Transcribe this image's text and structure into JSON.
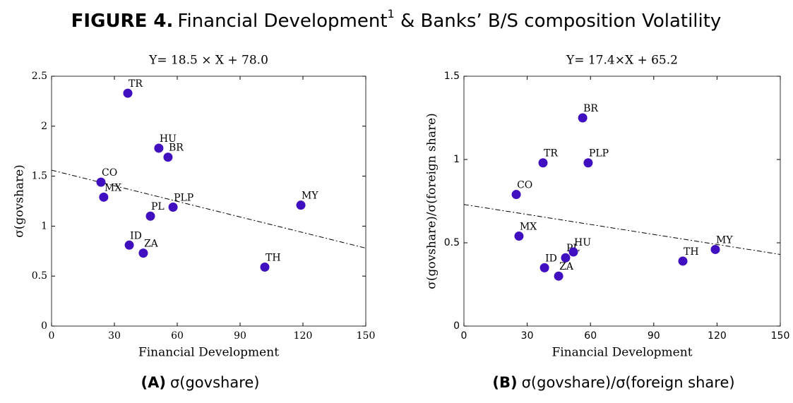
{
  "figure": {
    "label": "FIGURE 4.",
    "title_a": "Financial Development",
    "footnote": "1",
    "title_b": " & Banks’ B/S composition Volatility"
  },
  "chart_data": [
    {
      "type": "scatter",
      "title": "Y= 18.5 × X + 78.0",
      "xlabel": "Financial Development",
      "ylabel": "σ(govshare)",
      "caption_label": "(A)",
      "caption": "σ(govshare)",
      "color": "#4010c0",
      "labels": [
        "TR",
        "HU",
        "BR",
        "CO",
        "MX",
        "PLP",
        "PL",
        "MY",
        "ID",
        "ZA",
        "TH"
      ],
      "x": [
        36.4,
        51.2,
        55.6,
        23.6,
        24.9,
        58,
        47.2,
        119,
        37.1,
        43.8,
        101.8
      ],
      "values": [
        2.33,
        1.78,
        1.69,
        1.44,
        1.29,
        1.19,
        1.1,
        1.21,
        0.81,
        0.73,
        0.59
      ],
      "fit_line": {
        "x": [
          0,
          150
        ],
        "y": [
          1.56,
          0.78
        ]
      },
      "xlim": [
        0,
        150
      ],
      "xticks": [
        0,
        30,
        60,
        90,
        120,
        150
      ],
      "ylim": [
        0,
        2.5
      ],
      "yticks": [
        0,
        0.5,
        1,
        1.5,
        2,
        2.5
      ]
    },
    {
      "type": "scatter",
      "title": "Y= 17.4×X + 65.2",
      "xlabel": "Financial Development",
      "ylabel": "σ(govshare)/σ(foreign share)",
      "caption_label": "(B)",
      "caption": "σ(govshare)/σ(foreign share)",
      "color": "#4010c0",
      "labels": [
        "BR",
        "TR",
        "PLP",
        "CO",
        "MX",
        "PL",
        "HU",
        "ID",
        "ZA",
        "TH",
        "MY"
      ],
      "x": [
        56.3,
        37.5,
        58.9,
        24.8,
        26.1,
        48.2,
        51.9,
        38.2,
        44.9,
        103.8,
        119.2
      ],
      "values": [
        1.25,
        0.98,
        0.98,
        0.79,
        0.54,
        0.41,
        0.445,
        0.35,
        0.3,
        0.39,
        0.46
      ],
      "fit_line": {
        "x": [
          0,
          150
        ],
        "y": [
          0.73,
          0.43
        ]
      },
      "xlim": [
        0,
        150
      ],
      "xticks": [
        0,
        30,
        60,
        90,
        120,
        150
      ],
      "ylim": [
        0,
        1.5
      ],
      "yticks": [
        0,
        0.5,
        1,
        1.5
      ]
    }
  ]
}
